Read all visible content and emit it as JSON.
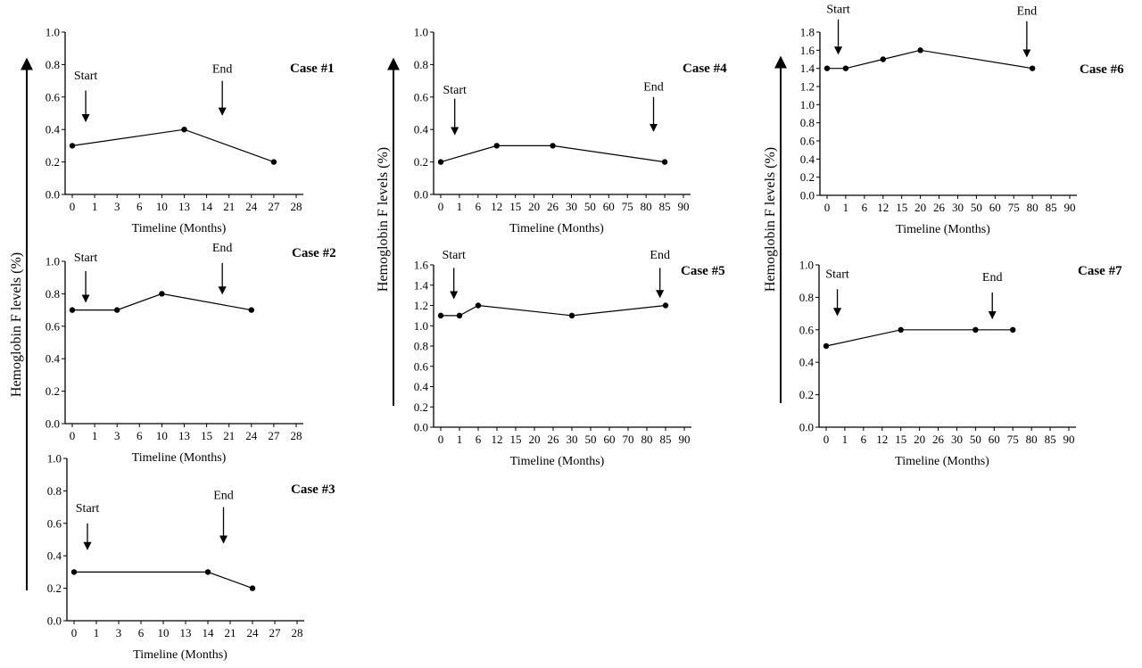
{
  "figure": {
    "ylabels": [
      "Hemoglobin F levels (%)",
      "Hemoglobin F levels (%)",
      "Hemoglobin F levels (%)"
    ]
  },
  "chart_data": [
    {
      "type": "line",
      "title": "Case #1",
      "xlabel": "Timeline (Months)",
      "ylabel": "",
      "categories": [
        "0",
        "1",
        "3",
        "6",
        "10",
        "13",
        "14",
        "21",
        "24",
        "27",
        "28"
      ],
      "yticks": [
        "0.0",
        "0.2",
        "0.4",
        "0.6",
        "0.8",
        "1.0"
      ],
      "ylim": [
        0,
        1.0
      ],
      "points": [
        {
          "x": "0",
          "y": 0.3
        },
        {
          "x": "13",
          "y": 0.4
        },
        {
          "x": "27",
          "y": 0.2
        }
      ],
      "annotations": [
        {
          "text": "Start",
          "x": 0.6,
          "label_y": 0.71,
          "arrow_from": 0.64,
          "arrow_to": 0.45
        },
        {
          "text": "End",
          "x": 6.7,
          "label_y": 0.75,
          "arrow_from": 0.7,
          "arrow_to": 0.49
        }
      ]
    },
    {
      "type": "line",
      "title": "Case #2",
      "xlabel": "Timeline (Months)",
      "ylabel": "",
      "categories": [
        "0",
        "1",
        "3",
        "6",
        "10",
        "13",
        "15",
        "21",
        "24",
        "27",
        "28"
      ],
      "yticks": [
        "0.0",
        "0.2",
        "0.4",
        "0.6",
        "0.8",
        "1.0"
      ],
      "ylim": [
        0,
        1.0
      ],
      "points": [
        {
          "x": "0",
          "y": 0.7
        },
        {
          "x": "3",
          "y": 0.7
        },
        {
          "x": "10",
          "y": 0.8
        },
        {
          "x": "24",
          "y": 0.7
        }
      ],
      "annotations": [
        {
          "text": "Start",
          "x": 0.6,
          "label_y": 1.0,
          "arrow_from": 0.94,
          "arrow_to": 0.75
        },
        {
          "text": "End",
          "x": 6.7,
          "label_y": 1.06,
          "arrow_from": 0.99,
          "arrow_to": 0.8
        }
      ]
    },
    {
      "type": "line",
      "title": "Case #3",
      "xlabel": "Timeline (Months)",
      "ylabel": "",
      "categories": [
        "0",
        "1",
        "3",
        "6",
        "10",
        "13",
        "14",
        "21",
        "24",
        "27",
        "28"
      ],
      "yticks": [
        "0.0",
        "0.2",
        "0.4",
        "0.6",
        "0.8",
        "1.0"
      ],
      "ylim": [
        0,
        1.0
      ],
      "points": [
        {
          "x": "0",
          "y": 0.3
        },
        {
          "x": "14",
          "y": 0.3
        },
        {
          "x": "24",
          "y": 0.2
        }
      ],
      "annotations": [
        {
          "text": "Start",
          "x": 0.6,
          "label_y": 0.67,
          "arrow_from": 0.6,
          "arrow_to": 0.44
        },
        {
          "text": "End",
          "x": 6.7,
          "label_y": 0.75,
          "arrow_from": 0.7,
          "arrow_to": 0.48
        }
      ]
    },
    {
      "type": "line",
      "title": "Case #4",
      "xlabel": "Timeline (Months)",
      "ylabel": "",
      "categories": [
        "0",
        "1",
        "6",
        "12",
        "15",
        "20",
        "26",
        "30",
        "50",
        "60",
        "75",
        "80",
        "85",
        "90"
      ],
      "yticks": [
        "0.0",
        "0.2",
        "0.4",
        "0.6",
        "0.8",
        "1.0"
      ],
      "ylim": [
        0,
        1.0
      ],
      "points": [
        {
          "x": "0",
          "y": 0.2
        },
        {
          "x": "12",
          "y": 0.3
        },
        {
          "x": "26",
          "y": 0.3
        },
        {
          "x": "85",
          "y": 0.2
        }
      ],
      "annotations": [
        {
          "text": "Start",
          "x": 0.75,
          "label_y": 0.62,
          "arrow_from": 0.59,
          "arrow_to": 0.37
        },
        {
          "text": "End",
          "x": 11.4,
          "label_y": 0.64,
          "arrow_from": 0.6,
          "arrow_to": 0.39
        }
      ]
    },
    {
      "type": "line",
      "title": "Case #5",
      "xlabel": "Timeline (Months)",
      "ylabel": "",
      "categories": [
        "0",
        "1",
        "6",
        "12",
        "15",
        "20",
        "26",
        "30",
        "50",
        "60",
        "70",
        "80",
        "85",
        "90"
      ],
      "yticks": [
        "0.0",
        "0.2",
        "0.4",
        "0.6",
        "0.8",
        "1.0",
        "1.2",
        "1.4",
        "1.6"
      ],
      "ylim": [
        0,
        1.6
      ],
      "points": [
        {
          "x": "0",
          "y": 1.1
        },
        {
          "x": "1",
          "y": 1.1
        },
        {
          "x": "6",
          "y": 1.2
        },
        {
          "x": "30",
          "y": 1.1
        },
        {
          "x": "85",
          "y": 1.2
        }
      ],
      "annotations": [
        {
          "text": "Start",
          "x": 0.7,
          "label_y": 1.66,
          "arrow_from": 1.57,
          "arrow_to": 1.27
        },
        {
          "text": "End",
          "x": 11.7,
          "label_y": 1.66,
          "arrow_from": 1.57,
          "arrow_to": 1.28
        }
      ]
    },
    {
      "type": "line",
      "title": "Case #6",
      "xlabel": "Timeline (Months)",
      "ylabel": "",
      "categories": [
        "0",
        "1",
        "6",
        "12",
        "15",
        "20",
        "26",
        "30",
        "50",
        "60",
        "75",
        "80",
        "85",
        "90"
      ],
      "yticks": [
        "0.0",
        "0.2",
        "0.4",
        "0.6",
        "0.8",
        "1.0",
        "1.2",
        "1.4",
        "1.6",
        "1.8"
      ],
      "ylim": [
        0,
        1.8
      ],
      "points": [
        {
          "x": "0",
          "y": 1.4
        },
        {
          "x": "1",
          "y": 1.4
        },
        {
          "x": "12",
          "y": 1.5
        },
        {
          "x": "20",
          "y": 1.6
        },
        {
          "x": "80",
          "y": 1.4
        }
      ],
      "annotations": [
        {
          "text": "Start",
          "x": 0.6,
          "label_y": 2.01,
          "arrow_from": 1.94,
          "arrow_to": 1.56
        },
        {
          "text": "End",
          "x": 10.7,
          "label_y": 1.99,
          "arrow_from": 1.92,
          "arrow_to": 1.53
        }
      ]
    },
    {
      "type": "line",
      "title": "Case #7",
      "xlabel": "Timeline (Months)",
      "ylabel": "",
      "categories": [
        "0",
        "1",
        "6",
        "12",
        "15",
        "20",
        "26",
        "30",
        "50",
        "60",
        "75",
        "80",
        "85",
        "90"
      ],
      "yticks": [
        "0.0",
        "0.2",
        "0.4",
        "0.6",
        "0.8",
        "1.0"
      ],
      "ylim": [
        0,
        1.0
      ],
      "points": [
        {
          "x": "0",
          "y": 0.5
        },
        {
          "x": "15",
          "y": 0.6
        },
        {
          "x": "50",
          "y": 0.6
        },
        {
          "x": "75",
          "y": 0.6
        }
      ],
      "annotations": [
        {
          "text": "Start",
          "x": 0.6,
          "label_y": 0.92,
          "arrow_from": 0.85,
          "arrow_to": 0.69
        },
        {
          "text": "End",
          "x": 8.9,
          "label_y": 0.9,
          "arrow_from": 0.83,
          "arrow_to": 0.67
        }
      ]
    }
  ]
}
